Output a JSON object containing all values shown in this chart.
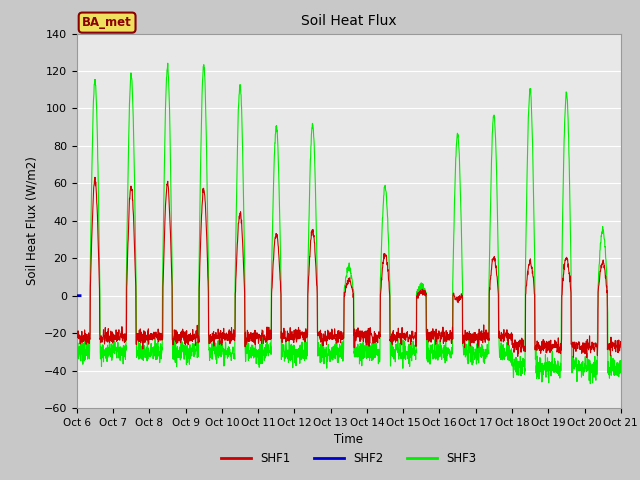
{
  "title": "Soil Heat Flux",
  "ylabel": "Soil Heat Flux (W/m2)",
  "xlabel": "Time",
  "ylim": [
    -60,
    140
  ],
  "fig_bg_color": "#c8c8c8",
  "plot_bg_color": "#e8e8e8",
  "shf1_color": "#cc0000",
  "shf2_color": "#0000cc",
  "shf3_color": "#00ee00",
  "annotation_text": "BA_met",
  "annotation_bg": "#f0e060",
  "annotation_border": "#8b0000",
  "tick_labels": [
    "Oct 6",
    "Oct 7",
    "Oct 8",
    "Oct 9",
    "Oct 10",
    "Oct 11",
    "Oct 12",
    "Oct 13",
    "Oct 14",
    "Oct 15",
    "Oct 16",
    "Oct 17",
    "Oct 18",
    "Oct 19",
    "Oct 20",
    "Oct 21"
  ],
  "n_days": 15,
  "points_per_day": 144,
  "shf1_peaks": [
    62,
    58,
    60,
    57,
    44,
    33,
    35,
    8,
    22,
    2,
    -2,
    20,
    18,
    20,
    18
  ],
  "shf3_peaks": [
    115,
    118,
    122,
    123,
    112,
    90,
    91,
    15,
    58,
    5,
    86,
    97,
    110,
    108,
    35
  ],
  "shf1_night_base": -22,
  "shf3_night_base": -30,
  "grid_color": "#ffffff",
  "yticks": [
    -60,
    -40,
    -20,
    0,
    20,
    40,
    60,
    80,
    100,
    120,
    140
  ]
}
